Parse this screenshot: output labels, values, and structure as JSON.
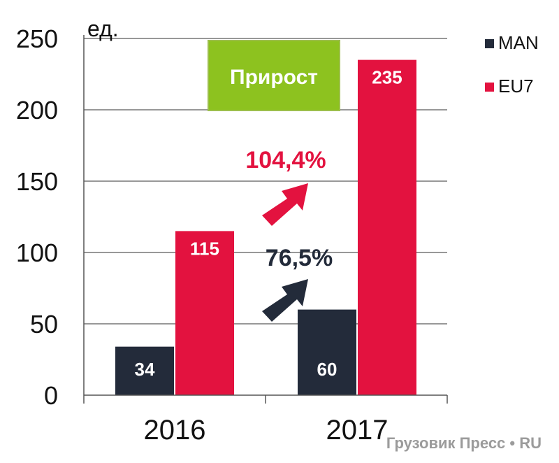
{
  "chart_data": {
    "type": "bar",
    "unit_label": "ед.",
    "categories": [
      "2016",
      "2017"
    ],
    "series": [
      {
        "name": "MAN",
        "color": "#232b3a",
        "values": [
          34,
          60
        ]
      },
      {
        "name": "EU7",
        "color": "#e3123f",
        "values": [
          115,
          235
        ]
      }
    ],
    "ylim": [
      0,
      250
    ],
    "yticks": [
      0,
      50,
      100,
      150,
      200,
      250
    ],
    "grid": true,
    "legend": "right",
    "annotations": {
      "growth_box_label": "Прирост",
      "growth_box_color": "#8dc21f",
      "growth_man": "76,5%",
      "growth_eu7": "104,4%"
    }
  },
  "watermark": "Грузовик Пресс • RU"
}
